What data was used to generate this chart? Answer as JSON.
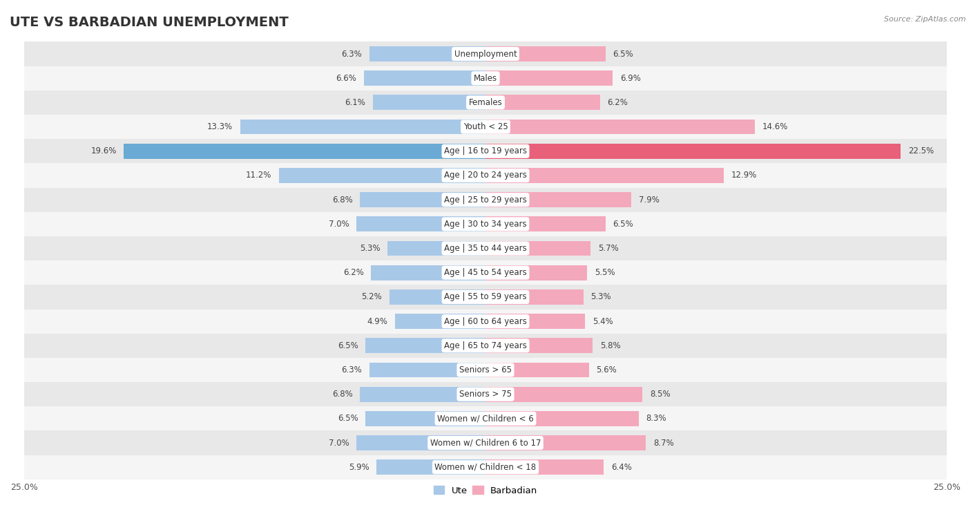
{
  "title": "UTE VS BARBADIAN UNEMPLOYMENT",
  "source": "Source: ZipAtlas.com",
  "categories": [
    "Unemployment",
    "Males",
    "Females",
    "Youth < 25",
    "Age | 16 to 19 years",
    "Age | 20 to 24 years",
    "Age | 25 to 29 years",
    "Age | 30 to 34 years",
    "Age | 35 to 44 years",
    "Age | 45 to 54 years",
    "Age | 55 to 59 years",
    "Age | 60 to 64 years",
    "Age | 65 to 74 years",
    "Seniors > 65",
    "Seniors > 75",
    "Women w/ Children < 6",
    "Women w/ Children 6 to 17",
    "Women w/ Children < 18"
  ],
  "ute_values": [
    6.3,
    6.6,
    6.1,
    13.3,
    19.6,
    11.2,
    6.8,
    7.0,
    5.3,
    6.2,
    5.2,
    4.9,
    6.5,
    6.3,
    6.8,
    6.5,
    7.0,
    5.9
  ],
  "barbadian_values": [
    6.5,
    6.9,
    6.2,
    14.6,
    22.5,
    12.9,
    7.9,
    6.5,
    5.7,
    5.5,
    5.3,
    5.4,
    5.8,
    5.6,
    8.5,
    8.3,
    8.7,
    6.4
  ],
  "ute_color": "#a8c8e8",
  "barbadian_color": "#f4a8bc",
  "ute_highlight_color": "#6aaad4",
  "barbadian_highlight_color": "#e8607a",
  "highlight_row": 4,
  "xlim": 25.0,
  "row_bg_colors": [
    "#e8e8e8",
    "#f5f5f5"
  ],
  "bar_height": 0.62,
  "title_fontsize": 14,
  "label_fontsize": 8.5,
  "value_fontsize": 8.5
}
